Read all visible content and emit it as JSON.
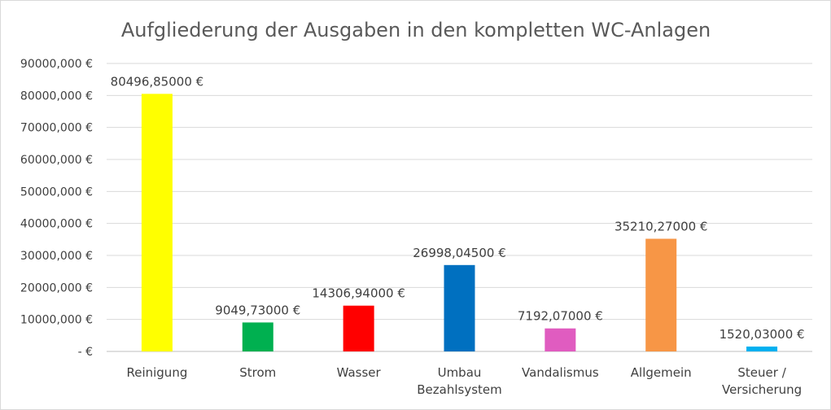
{
  "chart_data": {
    "type": "bar",
    "title": "Aufgliederung der Ausgaben in den kompletten WC-Anlagen",
    "categories": [
      [
        "Reinigung"
      ],
      [
        "Strom"
      ],
      [
        "Wasser"
      ],
      [
        "Umbau",
        "Bezahlsystem"
      ],
      [
        "Vandalismus"
      ],
      [
        "Allgemein"
      ],
      [
        "Steuer /",
        "Versicherung"
      ]
    ],
    "values": [
      80496.85,
      9049.73,
      14306.94,
      26998.045,
      7192.07,
      35210.27,
      1520.03
    ],
    "data_labels": [
      "80496,85000 €",
      "9049,73000 €",
      "14306,94000 €",
      "26998,04500 €",
      "7192,07000 €",
      "35210,27000 €",
      "1520,03000 €"
    ],
    "colors": [
      "#ffff00",
      "#00b050",
      "#ff0000",
      "#0070c0",
      "#e05cc0",
      "#f79646",
      "#00b0f0"
    ],
    "ylim": [
      0,
      90000
    ],
    "ytick_labels": [
      "-  €",
      "10000,000 €",
      "20000,000 €",
      "30000,000 €",
      "40000,000 €",
      "50000,000 €",
      "60000,000 €",
      "70000,000 €",
      "80000,000 €",
      "90000,000 €"
    ],
    "grid": true,
    "legend": "none"
  }
}
